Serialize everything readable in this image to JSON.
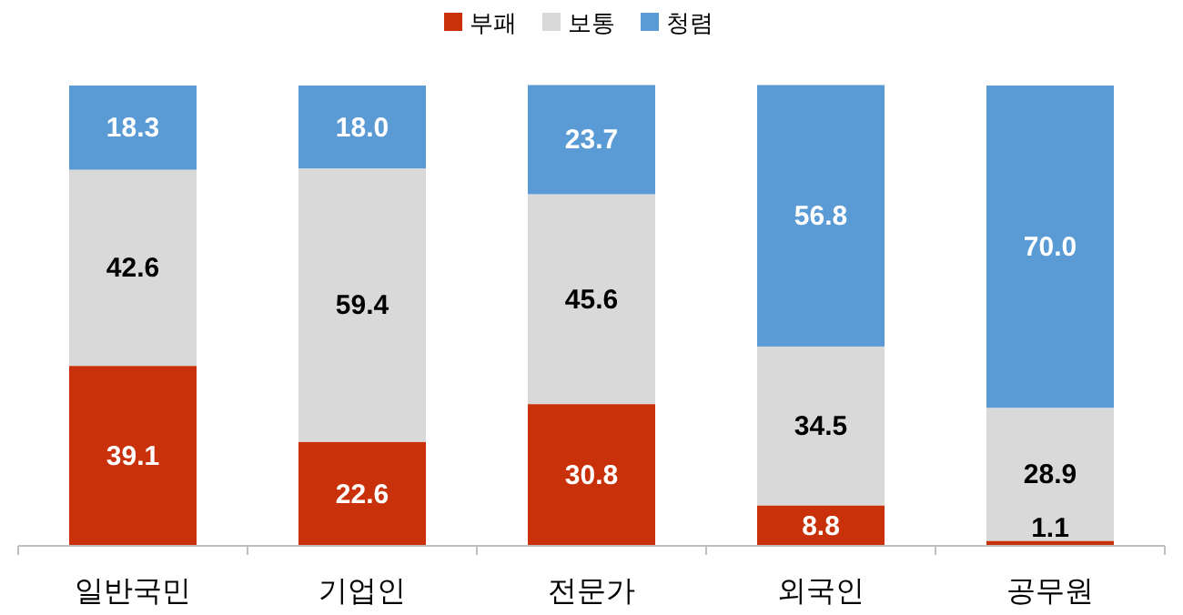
{
  "chart_data": {
    "type": "bar",
    "stacked": true,
    "categories": [
      "일반국민",
      "기업인",
      "전문가",
      "외국인",
      "공무원"
    ],
    "series": [
      {
        "name": "부패",
        "color": "#c9310a",
        "values": [
          39.1,
          22.6,
          30.8,
          8.8,
          1.1
        ],
        "value_labels": [
          "39.1",
          "22.6",
          "30.8",
          "8.8",
          "1.1"
        ]
      },
      {
        "name": "보통",
        "color": "#d9d9d9",
        "values": [
          42.6,
          59.4,
          45.6,
          34.5,
          28.9
        ],
        "value_labels": [
          "42.6",
          "59.4",
          "45.6",
          "34.5",
          "28.9"
        ]
      },
      {
        "name": "청렴",
        "color": "#5b9bd5",
        "values": [
          18.3,
          18.0,
          23.7,
          56.8,
          70.0
        ],
        "value_labels": [
          "18.3",
          "18.0",
          "23.7",
          "56.8",
          "70.0"
        ]
      }
    ],
    "ylim": [
      0,
      100
    ],
    "legend": "top",
    "tick_labels": "x"
  }
}
